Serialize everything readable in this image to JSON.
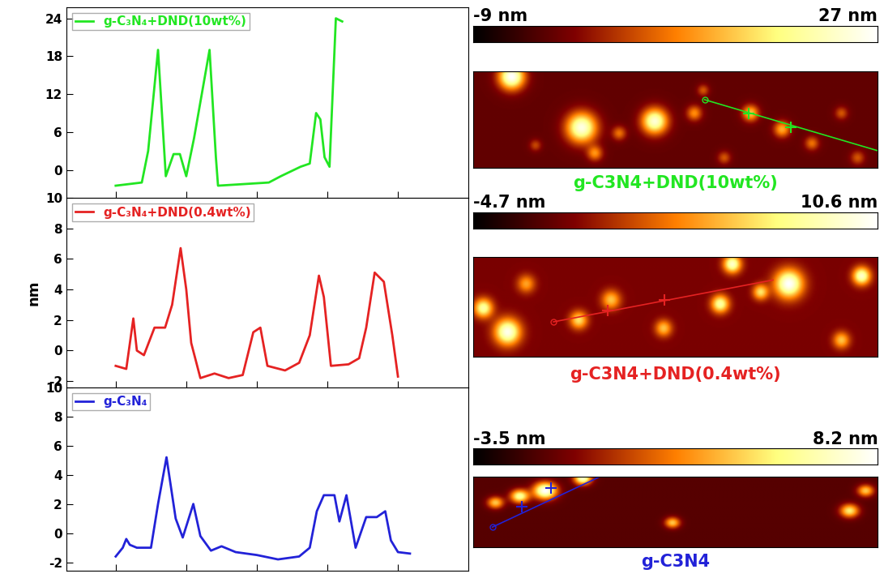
{
  "chart_data": [
    {
      "type": "line",
      "y_label": null,
      "legend": "upper left",
      "tick_labels": "y",
      "xlim": [
        -0.7,
        5.0
      ],
      "xticks": [
        0,
        1,
        2,
        3,
        4
      ],
      "ylim": [
        -4.4,
        25.8
      ],
      "yticks": [
        0,
        6,
        12,
        18,
        24
      ],
      "x": [
        0,
        0.37,
        0.46,
        0.6,
        0.71,
        0.82,
        0.91,
        1.0,
        1.11,
        1.33,
        1.42,
        1.45,
        2.17,
        2.34,
        2.62,
        2.75,
        2.84,
        2.9,
        2.96,
        3.03,
        3.12,
        3.21
      ],
      "series": [
        {
          "name": "g-C₃N₄+DND(10wt%)",
          "color": "#22e622",
          "values": [
            -2.5,
            -2,
            3,
            19,
            -1,
            2.5,
            2.5,
            -1,
            5,
            19,
            2,
            -2.5,
            -2,
            -1,
            0.5,
            1,
            9,
            8,
            2,
            0.5,
            24,
            23.5
          ]
        }
      ]
    },
    {
      "type": "line",
      "y_label": "nm",
      "legend": "upper left",
      "tick_labels": "y",
      "xlim": [
        -0.7,
        5.0
      ],
      "xticks": [
        0,
        1,
        2,
        3,
        4
      ],
      "ylim": [
        -2.4,
        10
      ],
      "yticks": [
        -2,
        0,
        2,
        4,
        6,
        8,
        10
      ],
      "x": [
        0,
        0.15,
        0.25,
        0.3,
        0.4,
        0.55,
        0.7,
        0.8,
        0.92,
        1.0,
        1.07,
        1.2,
        1.4,
        1.6,
        1.8,
        1.95,
        2.05,
        2.15,
        2.4,
        2.6,
        2.75,
        2.88,
        2.95,
        3.05,
        3.3,
        3.45,
        3.55,
        3.67,
        3.8,
        3.92,
        4.0
      ],
      "series": [
        {
          "name": "g-C₃N₄+DND(0.4wt%)",
          "color": "#e52222",
          "values": [
            -1,
            -1.2,
            2.1,
            0,
            -0.3,
            1.5,
            1.5,
            3,
            6.7,
            4,
            0.5,
            -1.8,
            -1.5,
            -1.8,
            -1.6,
            1.2,
            1.5,
            -1,
            -1.3,
            -0.8,
            1,
            4.9,
            3.5,
            -1,
            -0.9,
            -0.5,
            1.5,
            5.1,
            4.5,
            1,
            -1.7
          ]
        }
      ]
    },
    {
      "type": "line",
      "y_label": null,
      "legend": "upper left",
      "tick_labels": "y",
      "xlim": [
        -0.7,
        5.0
      ],
      "xticks": [
        0,
        1,
        2,
        3,
        4
      ],
      "ylim": [
        -2.6,
        10
      ],
      "yticks": [
        -2,
        0,
        2,
        4,
        6,
        8,
        10
      ],
      "x": [
        0,
        0.1,
        0.15,
        0.2,
        0.3,
        0.5,
        0.6,
        0.72,
        0.85,
        0.95,
        1.1,
        1.2,
        1.35,
        1.5,
        1.7,
        2.0,
        2.3,
        2.6,
        2.75,
        2.85,
        2.95,
        3.1,
        3.17,
        3.27,
        3.4,
        3.55,
        3.7,
        3.82,
        3.9,
        4.0,
        4.17
      ],
      "series": [
        {
          "name": "g-C₃N₄",
          "color": "#2222d8",
          "values": [
            -1.6,
            -1,
            -0.4,
            -0.8,
            -1,
            -1,
            2,
            5.2,
            1,
            -0.3,
            2,
            -0.2,
            -1.2,
            -0.9,
            -1.3,
            -1.5,
            -1.8,
            -1.6,
            -1,
            1.5,
            2.6,
            2.6,
            0.8,
            2.6,
            -1,
            1.1,
            1.1,
            1.5,
            -0.5,
            -1.3,
            -1.4
          ]
        }
      ]
    }
  ],
  "afm_images": [
    {
      "caption": "g-C3N4+DND(10wt%)",
      "color": "#22e622",
      "background": -2,
      "colorbar": {
        "range": [
          -9,
          27
        ],
        "ticks": [
          {
            "value": -9,
            "label": "-9 nm"
          },
          {
            "value": 27,
            "label": "27 nm"
          }
        ]
      },
      "particles": [
        {
          "x": 9.4,
          "y": 1.4,
          "height": 27,
          "sigma": 2.2
        },
        {
          "x": 26.7,
          "y": 14.1,
          "height": 25,
          "sigma": 2.6
        },
        {
          "x": 44.8,
          "y": 12.5,
          "height": 24,
          "sigma": 2.2
        },
        {
          "x": 36,
          "y": 15.5,
          "height": 8,
          "sigma": 1.2
        },
        {
          "x": 30,
          "y": 20.5,
          "height": 10,
          "sigma": 1.3
        },
        {
          "x": 54.6,
          "y": 10.5,
          "height": 10,
          "sigma": 1.3
        },
        {
          "x": 56.8,
          "y": 4.8,
          "height": 6,
          "sigma": 1.0
        },
        {
          "x": 68.5,
          "y": 10.5,
          "height": 14,
          "sigma": 1.4
        },
        {
          "x": 76.3,
          "y": 14.5,
          "height": 12,
          "sigma": 1.4
        },
        {
          "x": 83.7,
          "y": 18,
          "height": 8,
          "sigma": 1.2
        },
        {
          "x": 91,
          "y": 10.5,
          "height": 6,
          "sigma": 1.1
        },
        {
          "x": 95,
          "y": 21.6,
          "height": 6,
          "sigma": 1.2
        },
        {
          "x": 15.3,
          "y": 18.5,
          "height": 5,
          "sigma": 1.0
        },
        {
          "x": 62,
          "y": 21.6,
          "height": 6,
          "sigma": 1.1
        }
      ],
      "profile_line": {
        "x": [
          57.2,
          100
        ],
        "y": [
          7.1,
          19.8
        ]
      },
      "profile_marks": {
        "x": [
          68.1,
          78.5
        ],
        "y": [
          10.5,
          13.9
        ]
      }
    },
    {
      "caption": "g-C3N4+DND(0.4wt%)",
      "color": "#e52222",
      "background": -1,
      "colorbar": {
        "range": [
          -4.7,
          10.6
        ],
        "ticks": [
          {
            "value": -4.7,
            "label": "-4.7 nm"
          },
          {
            "value": 10.6,
            "label": "10.6 nm"
          }
        ]
      },
      "particles": [
        {
          "x": 78,
          "y": 6.4,
          "height": 10.6,
          "sigma": 2.4
        },
        {
          "x": 8.4,
          "y": 18.1,
          "height": 10,
          "sigma": 2.2
        },
        {
          "x": 2.4,
          "y": 12.3,
          "height": 8,
          "sigma": 1.6
        },
        {
          "x": 96,
          "y": 4.5,
          "height": 9,
          "sigma": 1.5
        },
        {
          "x": 64,
          "y": 1.6,
          "height": 9,
          "sigma": 1.5
        },
        {
          "x": 34,
          "y": 10.3,
          "height": 5,
          "sigma": 1.6
        },
        {
          "x": 26,
          "y": 15.2,
          "height": 6,
          "sigma": 1.5
        },
        {
          "x": 61,
          "y": 11.3,
          "height": 8,
          "sigma": 1.5
        },
        {
          "x": 71,
          "y": 8.4,
          "height": 6,
          "sigma": 1.3
        },
        {
          "x": 47,
          "y": 17.2,
          "height": 5,
          "sigma": 1.4
        },
        {
          "x": 91,
          "y": 20.1,
          "height": 5,
          "sigma": 1.4
        },
        {
          "x": 13,
          "y": 6.4,
          "height": 4,
          "sigma": 1.5
        }
      ],
      "profile_line": {
        "x": [
          19.9,
          74.1
        ],
        "y": [
          15.6,
          5.5
        ]
      },
      "profile_marks": {
        "x": [
          33.3,
          47.2
        ],
        "y": [
          12.9,
          10.3
        ]
      }
    },
    {
      "caption": "g-C3N4",
      "color": "#2222d8",
      "background": -1.5,
      "colorbar": {
        "range": [
          -3.5,
          8.2
        ],
        "ticks": [
          {
            "value": -3.5,
            "label": "-3.5 nm"
          },
          {
            "value": 8.2,
            "label": "8.2 nm"
          }
        ]
      },
      "particles": [
        {
          "x": 17.7,
          "y": 4.7,
          "height": 8.2,
          "sigma": 2.0
        },
        {
          "x": 11.4,
          "y": 6.6,
          "height": 6,
          "sigma": 1.6
        },
        {
          "x": 27,
          "y": 0.5,
          "height": 7,
          "sigma": 1.5
        },
        {
          "x": 5.4,
          "y": 8.8,
          "height": 4,
          "sigma": 1.4
        },
        {
          "x": 93,
          "y": 11.6,
          "height": 5,
          "sigma": 1.6
        },
        {
          "x": 49.2,
          "y": 15.7,
          "height": 4,
          "sigma": 1.3
        },
        {
          "x": 97,
          "y": 4.7,
          "height": 4,
          "sigma": 1.4
        }
      ],
      "profile_line": {
        "x": [
          4.8,
          31.3
        ],
        "y": [
          17.1,
          0
        ]
      },
      "profile_marks": {
        "x": [
          12,
          19.3
        ],
        "y": [
          10.2,
          3.9
        ]
      }
    }
  ]
}
